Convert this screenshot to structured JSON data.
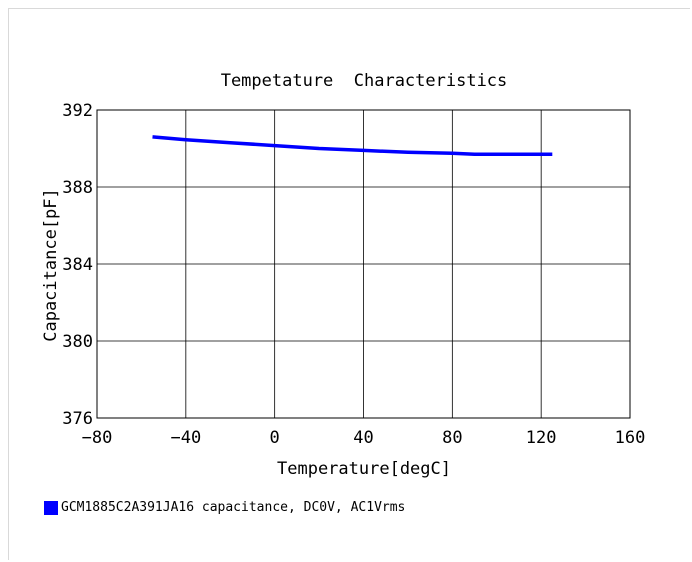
{
  "chart_data": {
    "type": "line",
    "title": "Tempetature  Characteristics",
    "xlabel": "Temperature[degC]",
    "ylabel": "Capacitance[pF]",
    "xlim": [
      -80,
      160
    ],
    "ylim": [
      376,
      392
    ],
    "xticks": [
      -80,
      -40,
      0,
      40,
      80,
      120,
      160
    ],
    "yticks": [
      376,
      380,
      384,
      388,
      392
    ],
    "grid": true,
    "legend_position": "bottom-left",
    "series": [
      {
        "name": "GCM1885C2A391JA16 capacitance, DC0V, AC1Vrms",
        "color": "#0000ff",
        "x": [
          -55,
          -40,
          -20,
          0,
          20,
          40,
          60,
          80,
          90,
          100,
          125
        ],
        "y": [
          390.6,
          390.45,
          390.3,
          390.15,
          390.0,
          389.9,
          389.8,
          389.75,
          389.7,
          389.7,
          389.7
        ]
      }
    ]
  }
}
